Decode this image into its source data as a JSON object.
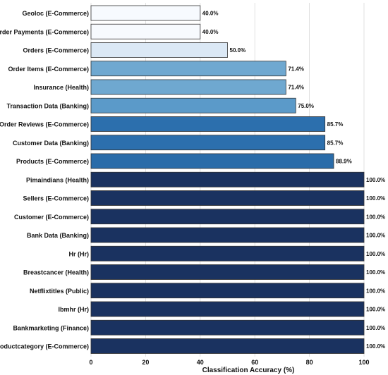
{
  "chart_data": {
    "type": "bar",
    "orientation": "horizontal",
    "title": "",
    "xlabel": "Classification Accuracy (%)",
    "ylabel": "",
    "xlim": [
      0,
      100
    ],
    "xticks": [
      0,
      20,
      40,
      60,
      80,
      100
    ],
    "grid": "vertical",
    "legend": "none",
    "categories": [
      "Geoloc (E-Commerce)",
      "Order Payments (E-Commerce)",
      "Orders  (E-Commerce)",
      "Order Items  (E-Commerce)",
      "Insurance (Health)",
      "Transaction Data (Banking)",
      "Order Reviews (E-Commerce)",
      "Customer Data (Banking)",
      "Products (E-Commerce)",
      "Pimaindians (Health)",
      "Sellers (E-Commerce)",
      "Customer (E-Commerce)",
      "Bank Data (Banking)",
      "Hr (Hr)",
      "Breastcancer (Health)",
      "Netflixtitles (Public)",
      "Ibmhr (Hr)",
      "Bankmarketing (Finance)",
      "Productcategory (E-Commerce)"
    ],
    "values": [
      40.0,
      40.0,
      50.0,
      71.4,
      71.4,
      75.0,
      85.7,
      85.7,
      88.9,
      100.0,
      100.0,
      100.0,
      100.0,
      100.0,
      100.0,
      100.0,
      100.0,
      100.0,
      100.0
    ],
    "value_labels": [
      "40.0%",
      "40.0%",
      "50.0%",
      "71.4%",
      "71.4%",
      "75.0%",
      "85.7%",
      "85.7%",
      "88.9%",
      "100.0%",
      "100.0%",
      "100.0%",
      "100.0%",
      "100.0%",
      "100.0%",
      "100.0%",
      "100.0%",
      "100.0%",
      "100.0%"
    ],
    "colors": [
      "#f7fafe",
      "#f7fafe",
      "#dbe8f5",
      "#6fa8d0",
      "#6fa8d0",
      "#5b9ac9",
      "#2c6fad",
      "#2c6fad",
      "#2a6ca9",
      "#1a3260",
      "#1a3260",
      "#1a3260",
      "#1a3260",
      "#1a3260",
      "#1a3260",
      "#1a3260",
      "#1a3260",
      "#1a3260",
      "#1a3260"
    ],
    "bar_edge_color": "#333333",
    "grid_color": "#d9d9d9"
  }
}
